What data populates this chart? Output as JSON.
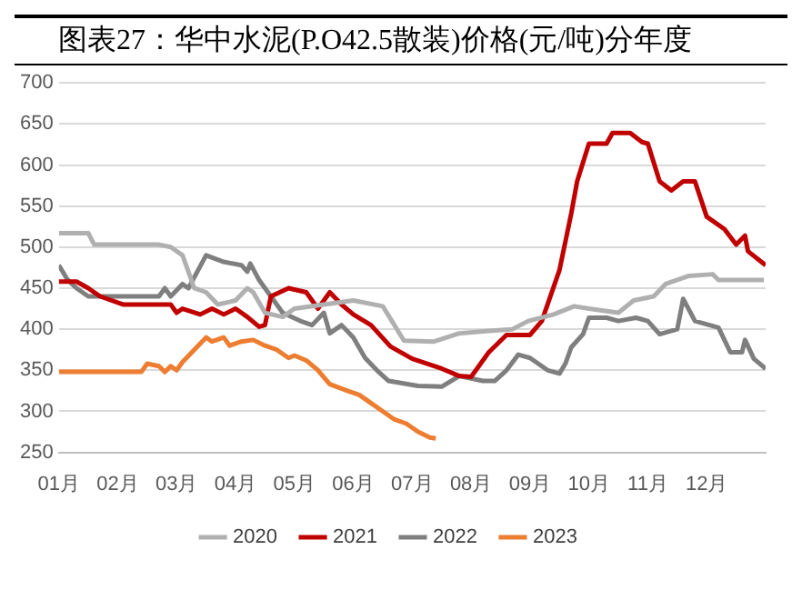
{
  "chart_data": {
    "type": "line",
    "title": "图表27：华中水泥(P.O42.5散装)价格(元/吨)分年度",
    "xlim": [
      1,
      13
    ],
    "xticks": [
      {
        "value": 1,
        "label": "01月"
      },
      {
        "value": 2,
        "label": "02月"
      },
      {
        "value": 3,
        "label": "03月"
      },
      {
        "value": 4,
        "label": "04月"
      },
      {
        "value": 5,
        "label": "05月"
      },
      {
        "value": 6,
        "label": "06月"
      },
      {
        "value": 7,
        "label": "07月"
      },
      {
        "value": 8,
        "label": "08月"
      },
      {
        "value": 9,
        "label": "09月"
      },
      {
        "value": 10,
        "label": "10月"
      },
      {
        "value": 11,
        "label": "11月"
      },
      {
        "value": 12,
        "label": "12月"
      }
    ],
    "ylim": [
      250,
      700
    ],
    "yticks": [
      250,
      300,
      350,
      400,
      450,
      500,
      550,
      600,
      650,
      700
    ],
    "grid": "y",
    "legend": "bottom",
    "marker": "none",
    "line_style": "solid",
    "series": [
      {
        "name": "2020",
        "color": "#b0b0b0",
        "x": [
          1,
          1.5,
          1.6,
          2.7,
          2.9,
          3.1,
          3.3,
          3.5,
          3.7,
          4.0,
          4.2,
          4.3,
          4.5,
          4.8,
          5.0,
          5.5,
          6.0,
          6.5,
          6.86,
          7.37,
          7.8,
          8.3,
          8.7,
          8.97,
          9.4,
          9.75,
          10,
          10.5,
          10.76,
          11.1,
          11.3,
          11.7,
          12.1,
          12.2,
          12.97
        ],
        "values": [
          517,
          517,
          503,
          503,
          500,
          490,
          450,
          445,
          430,
          435,
          450,
          445,
          420,
          415,
          425,
          430,
          435,
          428,
          386,
          385,
          395,
          398,
          400,
          410,
          418,
          428,
          425,
          420,
          435,
          440,
          455,
          465,
          467,
          460,
          460
        ]
      },
      {
        "name": "2021",
        "color": "#c00000",
        "x": [
          1,
          1.3,
          1.5,
          1.7,
          2.1,
          2.9,
          3.0,
          3.1,
          3.4,
          3.6,
          3.8,
          4.0,
          4.2,
          4.4,
          4.5,
          4.6,
          4.9,
          5.2,
          5.4,
          5.6,
          5.8,
          6.0,
          6.3,
          6.63,
          7.0,
          7.5,
          7.8,
          8.0,
          8.3,
          8.6,
          9.0,
          9.2,
          9.5,
          9.7,
          9.8,
          10.0,
          10.3,
          10.4,
          10.7,
          10.9,
          11.0,
          11.2,
          11.4,
          11.6,
          11.8,
          12.0,
          12.3,
          12.5,
          12.65,
          12.7,
          13.0
        ],
        "values": [
          458,
          458,
          450,
          440,
          430,
          430,
          420,
          425,
          418,
          425,
          418,
          425,
          415,
          403,
          405,
          440,
          450,
          445,
          425,
          445,
          430,
          418,
          405,
          379,
          364,
          352,
          343,
          342,
          372,
          393,
          393,
          410,
          472,
          541,
          580,
          626,
          626,
          639,
          639,
          628,
          626,
          580,
          569,
          580,
          580,
          537,
          522,
          503,
          514,
          495,
          478
        ]
      },
      {
        "name": "2022",
        "color": "#7f7f7f",
        "x": [
          1,
          1.15,
          1.3,
          1.5,
          2.7,
          2.8,
          2.9,
          3.1,
          3.2,
          3.5,
          3.8,
          4.1,
          4.2,
          4.25,
          4.4,
          4.6,
          4.8,
          5.1,
          5.3,
          5.5,
          5.6,
          5.8,
          6.0,
          6.2,
          6.4,
          6.6,
          7.1,
          7.5,
          7.8,
          8.0,
          8.2,
          8.4,
          8.6,
          8.8,
          9.0,
          9.3,
          9.5,
          9.6,
          9.7,
          9.9,
          10.0,
          10.3,
          10.5,
          10.8,
          11.0,
          11.2,
          11.5,
          11.6,
          11.8,
          12.2,
          12.4,
          12.6,
          12.65,
          12.8,
          13.0
        ],
        "values": [
          478,
          460,
          450,
          440,
          440,
          450,
          440,
          455,
          450,
          490,
          482,
          478,
          470,
          480,
          460,
          440,
          420,
          410,
          405,
          420,
          395,
          405,
          390,
          365,
          350,
          337,
          331,
          330,
          343,
          340,
          337,
          337,
          350,
          369,
          365,
          350,
          346,
          358,
          378,
          394,
          414,
          414,
          410,
          414,
          410,
          394,
          400,
          437,
          410,
          402,
          372,
          372,
          387,
          364,
          352
        ]
      },
      {
        "name": "2023",
        "color": "#ed7d31",
        "x": [
          1,
          2.4,
          2.5,
          2.7,
          2.8,
          2.9,
          3.0,
          3.1,
          3.3,
          3.5,
          3.6,
          3.8,
          3.9,
          4.1,
          4.3,
          4.5,
          4.7,
          4.9,
          5.0,
          5.2,
          5.4,
          5.6,
          5.9,
          6.1,
          6.3,
          6.5,
          6.7,
          6.9,
          7.1,
          7.3,
          7.4
        ],
        "values": [
          348,
          348,
          358,
          355,
          348,
          355,
          350,
          360,
          375,
          390,
          385,
          390,
          380,
          385,
          387,
          380,
          375,
          365,
          368,
          362,
          350,
          333,
          325,
          320,
          310,
          300,
          290,
          285,
          275,
          268,
          267
        ]
      }
    ]
  }
}
